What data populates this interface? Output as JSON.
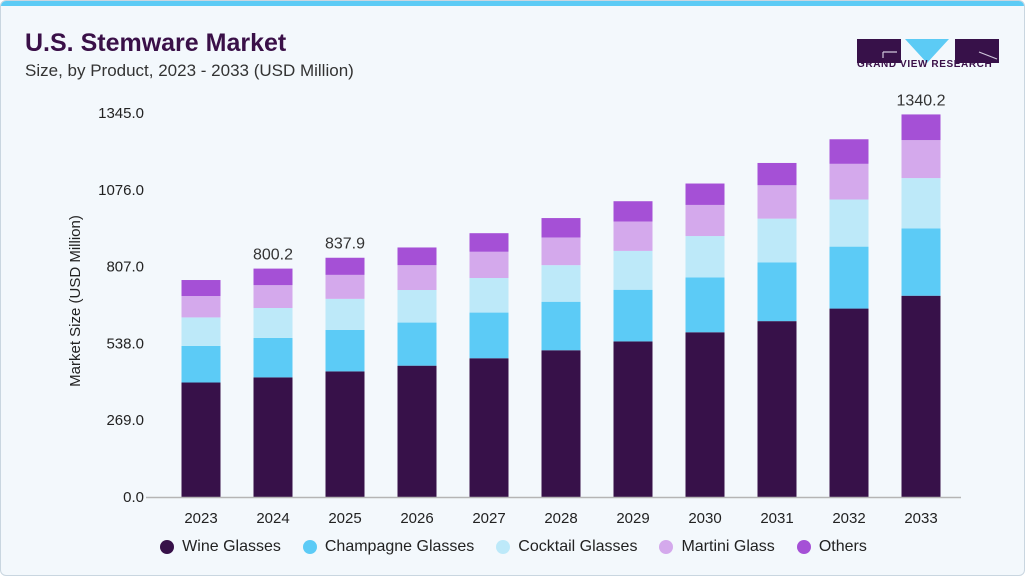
{
  "header": {
    "title": "U.S. Stemware Market",
    "subtitle": "Size, by Product, 2023 - 2033 (USD Million)"
  },
  "logo": {
    "text": "GRAND VIEW RESEARCH"
  },
  "chart_data": {
    "type": "bar",
    "stacked": true,
    "title": "U.S. Stemware Market",
    "subtitle": "Size, by Product, 2023 - 2033 (USD Million)",
    "xlabel": "",
    "ylabel": "Market Size (USD Million)",
    "ylim": [
      0,
      1345
    ],
    "yticks": [
      "0.0",
      "269.0",
      "538.0",
      "807.0",
      "1076.0",
      "1345.0"
    ],
    "grid": false,
    "legend": "bottom",
    "categories": [
      "2023",
      "2024",
      "2025",
      "2026",
      "2027",
      "2028",
      "2029",
      "2030",
      "2031",
      "2032",
      "2033"
    ],
    "series": [
      {
        "name": "Wine Glasses",
        "color": "#371149",
        "values": [
          401,
          419,
          440,
          460,
          486,
          514,
          545,
          577,
          616,
          660,
          705
        ]
      },
      {
        "name": "Champagne Glasses",
        "color": "#5ccbf6",
        "values": [
          128,
          138,
          145,
          151,
          160,
          170,
          181,
          192,
          206,
          217,
          236
        ]
      },
      {
        "name": "Cocktail Glasses",
        "color": "#bde9f9",
        "values": [
          100,
          105,
          109,
          114,
          121,
          128,
          136,
          145,
          153,
          165,
          176
        ]
      },
      {
        "name": "Martini Glass",
        "color": "#d4a9ec",
        "values": [
          75,
          80,
          84,
          87,
          92,
          97,
          103,
          109,
          117,
          125,
          133
        ]
      },
      {
        "name": "Others",
        "color": "#a550d6",
        "values": [
          56,
          58,
          60,
          62,
          65,
          68,
          71,
          75,
          78,
          86,
          90
        ]
      }
    ],
    "data_labels": [
      {
        "category": "2024",
        "text": "800.2"
      },
      {
        "category": "2025",
        "text": "837.9"
      },
      {
        "category": "2033",
        "text": "1340.2"
      }
    ]
  }
}
